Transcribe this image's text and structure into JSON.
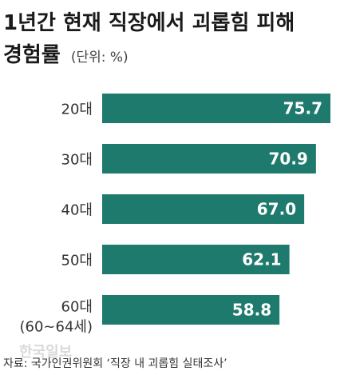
{
  "chart_data": {
    "type": "bar",
    "orientation": "horizontal",
    "title_lines": [
      "1년간 현재 직장에서 괴롭힘 피해",
      "경험률"
    ],
    "unit": "(단위: %)",
    "categories": [
      "20대",
      "30대",
      "40대",
      "50대",
      "60대"
    ],
    "category_sublabels": [
      "",
      "",
      "",
      "",
      "(60~64세)"
    ],
    "values": [
      75.7,
      70.9,
      67.0,
      62.1,
      58.8
    ],
    "value_labels": [
      "75.7",
      "70.9",
      "67.0",
      "62.1",
      "58.8"
    ],
    "xlim": [
      0,
      75.7
    ],
    "grid": false,
    "bar_color": "#1e7a6d",
    "source": "자료: 국가인권위원회 ‘직장 내 괴롭힘 실태조사’",
    "watermark": "한국일보"
  }
}
